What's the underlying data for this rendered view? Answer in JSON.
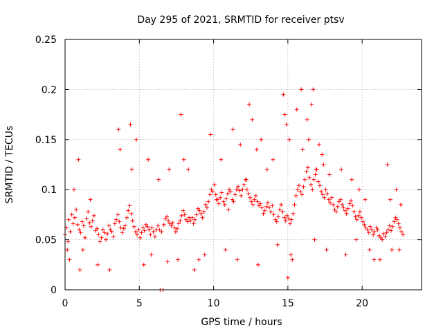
{
  "chart_data": {
    "type": "scatter",
    "title": "Day 295 of 2021, SRMTID for receiver ptsv",
    "xlabel": "GPS time / hours",
    "ylabel": "SRMTID / TECUs",
    "xlim": [
      0,
      24
    ],
    "ylim": [
      0,
      0.25
    ],
    "x_ticks": [
      0,
      5,
      10,
      15,
      20
    ],
    "x_tick_labels": [
      "0",
      "5",
      "10",
      "15",
      "20"
    ],
    "y_ticks": [
      0,
      0.05,
      0.1,
      0.15,
      0.2,
      0.25
    ],
    "y_tick_labels": [
      "0",
      "0.05",
      "0.1",
      "0.15",
      "0.2",
      "0.25"
    ],
    "grid": true,
    "series": [
      {
        "name": "SRMTID",
        "color": "#ff0000",
        "marker": "plus",
        "x": [
          0.0,
          0.1,
          0.2,
          0.25,
          0.35,
          0.45,
          0.55,
          0.65,
          0.75,
          0.85,
          0.95,
          1.05,
          1.15,
          1.25,
          1.35,
          1.45,
          1.55,
          1.65,
          1.75,
          1.85,
          1.95,
          2.05,
          2.15,
          2.25,
          2.35,
          2.45,
          2.55,
          2.65,
          2.75,
          2.85,
          2.95,
          3.05,
          3.15,
          3.25,
          3.35,
          3.45,
          3.55,
          3.65,
          3.75,
          3.85,
          3.95,
          4.05,
          4.15,
          4.25,
          4.35,
          4.45,
          4.55,
          4.65,
          4.75,
          4.85,
          4.95,
          5.05,
          5.15,
          5.25,
          5.35,
          5.45,
          5.55,
          5.65,
          5.75,
          5.85,
          5.95,
          6.05,
          6.15,
          6.25,
          6.35,
          6.5,
          6.65,
          6.75,
          6.85,
          6.95,
          7.05,
          7.15,
          7.25,
          7.35,
          7.45,
          7.55,
          7.65,
          7.75,
          7.85,
          7.95,
          8.05,
          8.15,
          8.25,
          8.35,
          8.45,
          8.55,
          8.65,
          8.75,
          8.85,
          8.95,
          9.05,
          9.15,
          9.25,
          9.35,
          9.45,
          9.55,
          9.65,
          9.75,
          9.85,
          9.95,
          10.05,
          10.15,
          10.25,
          10.35,
          10.45,
          10.55,
          10.65,
          10.75,
          10.85,
          10.95,
          11.05,
          11.15,
          11.25,
          11.35,
          11.45,
          11.55,
          11.65,
          11.75,
          11.85,
          11.95,
          12.05,
          12.15,
          12.25,
          12.35,
          12.45,
          12.55,
          12.65,
          12.75,
          12.85,
          12.95,
          13.05,
          13.15,
          13.25,
          13.35,
          13.45,
          13.55,
          13.65,
          13.75,
          13.85,
          13.95,
          14.05,
          14.15,
          14.25,
          14.35,
          14.45,
          14.55,
          14.65,
          14.75,
          14.85,
          14.95,
          15.05,
          15.15,
          15.25,
          15.35,
          15.45,
          15.55,
          15.65,
          15.75,
          15.85,
          15.95,
          16.05,
          16.15,
          16.25,
          16.35,
          16.45,
          16.55,
          16.65,
          16.75,
          16.85,
          16.95,
          17.05,
          17.15,
          17.25,
          17.35,
          17.45,
          17.55,
          17.65,
          17.75,
          17.85,
          17.95,
          18.05,
          18.15,
          18.25,
          18.35,
          18.45,
          18.55,
          18.65,
          18.75,
          18.85,
          18.95,
          19.05,
          19.15,
          19.25,
          19.35,
          19.45,
          19.55,
          19.65,
          19.75,
          19.85,
          19.95,
          20.05,
          20.15,
          20.25,
          20.35,
          20.45,
          20.55,
          20.65,
          20.75,
          20.85,
          20.95,
          21.05,
          21.15,
          21.25,
          21.35,
          21.45,
          21.55,
          21.65,
          21.75,
          21.85,
          21.95,
          22.05,
          22.15,
          22.25,
          22.35,
          22.45,
          22.55,
          22.65,
          22.75,
          0.3,
          0.6,
          0.9,
          1.2,
          1.7,
          3.6,
          3.7,
          4.4,
          4.5,
          5.6,
          5.8,
          6.3,
          6.9,
          7.8,
          8.0,
          8.3,
          9.0,
          9.8,
          10.5,
          11.3,
          11.8,
          12.2,
          12.6,
          12.9,
          13.2,
          13.6,
          14.0,
          14.7,
          14.8,
          15.2,
          15.6,
          15.9,
          16.4,
          16.6,
          16.9,
          17.1,
          17.4,
          17.8,
          18.6,
          19.3,
          19.8,
          20.2,
          20.8,
          21.7,
          21.9,
          22.3,
          22.6,
          0.15,
          1.0,
          2.2,
          3.0,
          4.8,
          5.3,
          7.0,
          7.6,
          8.7,
          9.4,
          10.8,
          11.6,
          13.0,
          14.3,
          15.0,
          15.3,
          16.0,
          16.8,
          17.6,
          18.9,
          19.6,
          20.5,
          21.2,
          22.0,
          22.5,
          14.9,
          15.1,
          16.7,
          16.3,
          17.3,
          12.4,
          10.2,
          11.0,
          6.4,
          6.6
        ],
        "y": [
          0.055,
          0.062,
          0.048,
          0.07,
          0.058,
          0.075,
          0.066,
          0.072,
          0.08,
          0.065,
          0.06,
          0.057,
          0.068,
          0.064,
          0.052,
          0.071,
          0.078,
          0.067,
          0.063,
          0.069,
          0.074,
          0.059,
          0.061,
          0.055,
          0.048,
          0.052,
          0.06,
          0.057,
          0.05,
          0.056,
          0.064,
          0.06,
          0.058,
          0.053,
          0.066,
          0.07,
          0.075,
          0.068,
          0.062,
          0.057,
          0.061,
          0.064,
          0.072,
          0.079,
          0.084,
          0.076,
          0.069,
          0.063,
          0.058,
          0.055,
          0.06,
          0.052,
          0.057,
          0.062,
          0.059,
          0.065,
          0.063,
          0.06,
          0.055,
          0.062,
          0.058,
          0.053,
          0.06,
          0.064,
          0.06,
          0.058,
          0.065,
          0.071,
          0.073,
          0.069,
          0.066,
          0.064,
          0.067,
          0.062,
          0.058,
          0.061,
          0.066,
          0.069,
          0.074,
          0.079,
          0.075,
          0.07,
          0.068,
          0.072,
          0.069,
          0.072,
          0.066,
          0.07,
          0.075,
          0.081,
          0.079,
          0.076,
          0.072,
          0.078,
          0.085,
          0.082,
          0.088,
          0.095,
          0.1,
          0.098,
          0.105,
          0.095,
          0.09,
          0.086,
          0.092,
          0.097,
          0.088,
          0.085,
          0.091,
          0.096,
          0.1,
          0.098,
          0.09,
          0.088,
          0.095,
          0.1,
          0.103,
          0.099,
          0.094,
          0.1,
          0.105,
          0.11,
          0.1,
          0.096,
          0.092,
          0.088,
          0.085,
          0.09,
          0.094,
          0.088,
          0.084,
          0.086,
          0.082,
          0.076,
          0.079,
          0.083,
          0.087,
          0.082,
          0.078,
          0.084,
          0.075,
          0.07,
          0.068,
          0.073,
          0.08,
          0.085,
          0.078,
          0.072,
          0.069,
          0.074,
          0.071,
          0.066,
          0.07,
          0.076,
          0.085,
          0.094,
          0.1,
          0.104,
          0.098,
          0.095,
          0.103,
          0.11,
          0.118,
          0.122,
          0.112,
          0.105,
          0.1,
          0.11,
          0.115,
          0.12,
          0.108,
          0.104,
          0.098,
          0.095,
          0.092,
          0.1,
          0.096,
          0.09,
          0.087,
          0.092,
          0.085,
          0.08,
          0.078,
          0.083,
          0.088,
          0.09,
          0.085,
          0.082,
          0.079,
          0.076,
          0.081,
          0.086,
          0.089,
          0.084,
          0.078,
          0.073,
          0.07,
          0.074,
          0.078,
          0.072,
          0.068,
          0.065,
          0.062,
          0.06,
          0.057,
          0.063,
          0.06,
          0.055,
          0.058,
          0.062,
          0.06,
          0.054,
          0.052,
          0.05,
          0.056,
          0.053,
          0.057,
          0.06,
          0.064,
          0.059,
          0.063,
          0.068,
          0.072,
          0.07,
          0.066,
          0.062,
          0.058,
          0.055,
          0.03,
          0.1,
          0.13,
          0.04,
          0.09,
          0.16,
          0.14,
          0.165,
          0.12,
          0.13,
          0.035,
          0.11,
          0.028,
          0.175,
          0.13,
          0.12,
          0.03,
          0.155,
          0.13,
          0.16,
          0.145,
          0.11,
          0.17,
          0.14,
          0.15,
          0.12,
          0.13,
          0.195,
          0.175,
          0.035,
          0.18,
          0.2,
          0.15,
          0.185,
          0.12,
          0.145,
          0.125,
          0.115,
          0.12,
          0.11,
          0.1,
          0.09,
          0.03,
          0.125,
          0.09,
          0.1,
          0.085,
          0.04,
          0.02,
          0.025,
          0.02,
          0.15,
          0.025,
          0.12,
          0.03,
          0.02,
          0.035,
          0.04,
          0.03,
          0.025,
          0.045,
          0.012,
          0.03,
          0.14,
          0.05,
          0.04,
          0.035,
          0.05,
          0.04,
          0.03,
          0.04,
          0.04,
          0.165,
          0.15,
          0.2,
          0.17,
          0.135,
          0.185,
          0.09,
          0.08,
          0.0,
          0.0
        ]
      }
    ]
  }
}
